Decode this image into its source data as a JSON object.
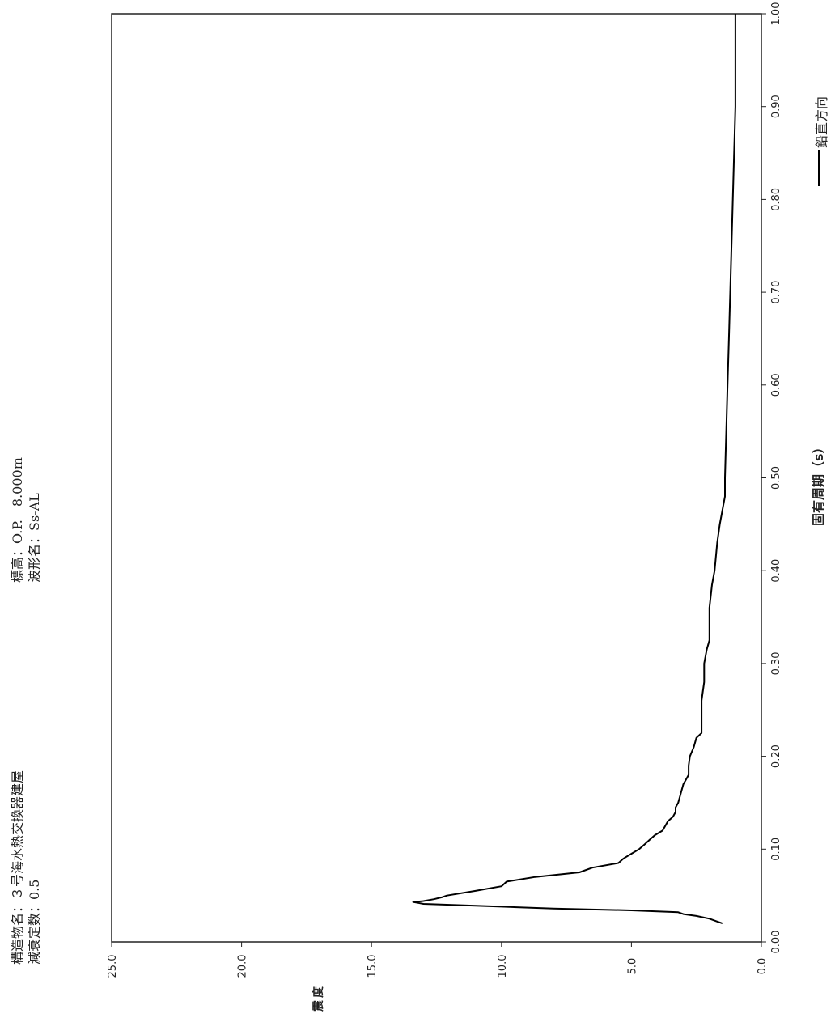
{
  "header": {
    "structure_label": "構造物名：",
    "structure_value": "３号海水熱交換器建屋",
    "damping_label": "減衰定数：",
    "damping_value": "0.5",
    "elevation_label": "標高：",
    "elevation_value": "O.P.　8.000m",
    "wave_label": "波形名：",
    "wave_value": "Ss-AL"
  },
  "chart_data": {
    "type": "line",
    "title": "",
    "xlabel": "固有周期（s）",
    "ylabel": "震度",
    "xlim": [
      0.0,
      1.0
    ],
    "ylim": [
      0.0,
      25.0
    ],
    "x_ticks": [
      "0.00",
      "0.10",
      "0.20",
      "0.30",
      "0.40",
      "0.50",
      "0.60",
      "0.70",
      "0.80",
      "0.90",
      "1.00"
    ],
    "y_ticks": [
      "0.0",
      "5.0",
      "10.0",
      "15.0",
      "20.0",
      "25.0"
    ],
    "grid": false,
    "legend_position": "top-right",
    "series": [
      {
        "name": "鉛直方向",
        "color": "#000000",
        "x": [
          0.02,
          0.022,
          0.025,
          0.028,
          0.03,
          0.032,
          0.034,
          0.036,
          0.038,
          0.04,
          0.041,
          0.042,
          0.043,
          0.044,
          0.046,
          0.048,
          0.05,
          0.055,
          0.06,
          0.065,
          0.07,
          0.075,
          0.08,
          0.085,
          0.09,
          0.095,
          0.1,
          0.105,
          0.11,
          0.115,
          0.12,
          0.125,
          0.13,
          0.135,
          0.14,
          0.145,
          0.15,
          0.16,
          0.17,
          0.175,
          0.18,
          0.19,
          0.2,
          0.21,
          0.22,
          0.225,
          0.24,
          0.26,
          0.28,
          0.3,
          0.315,
          0.325,
          0.34,
          0.36,
          0.385,
          0.4,
          0.43,
          0.45,
          0.465,
          0.48,
          0.5,
          0.55,
          0.6,
          0.65,
          0.7,
          0.75,
          0.8,
          0.85,
          0.9,
          0.95,
          1.0
        ],
        "y": [
          1.5,
          1.7,
          2.0,
          2.5,
          3.0,
          3.2,
          5.0,
          8.0,
          10.0,
          12.0,
          13.0,
          13.2,
          13.4,
          13.0,
          12.6,
          12.3,
          12.1,
          11.0,
          10.0,
          9.8,
          8.7,
          7.0,
          6.5,
          5.5,
          5.3,
          5.0,
          4.7,
          4.5,
          4.3,
          4.1,
          3.8,
          3.7,
          3.6,
          3.4,
          3.3,
          3.3,
          3.2,
          3.1,
          3.0,
          2.9,
          2.8,
          2.8,
          2.75,
          2.6,
          2.5,
          2.3,
          2.3,
          2.3,
          2.2,
          2.2,
          2.1,
          2.0,
          2.0,
          2.0,
          1.9,
          1.8,
          1.7,
          1.6,
          1.5,
          1.4,
          1.4,
          1.35,
          1.3,
          1.25,
          1.2,
          1.15,
          1.1,
          1.05,
          1.0,
          1.0,
          1.0
        ]
      }
    ]
  }
}
